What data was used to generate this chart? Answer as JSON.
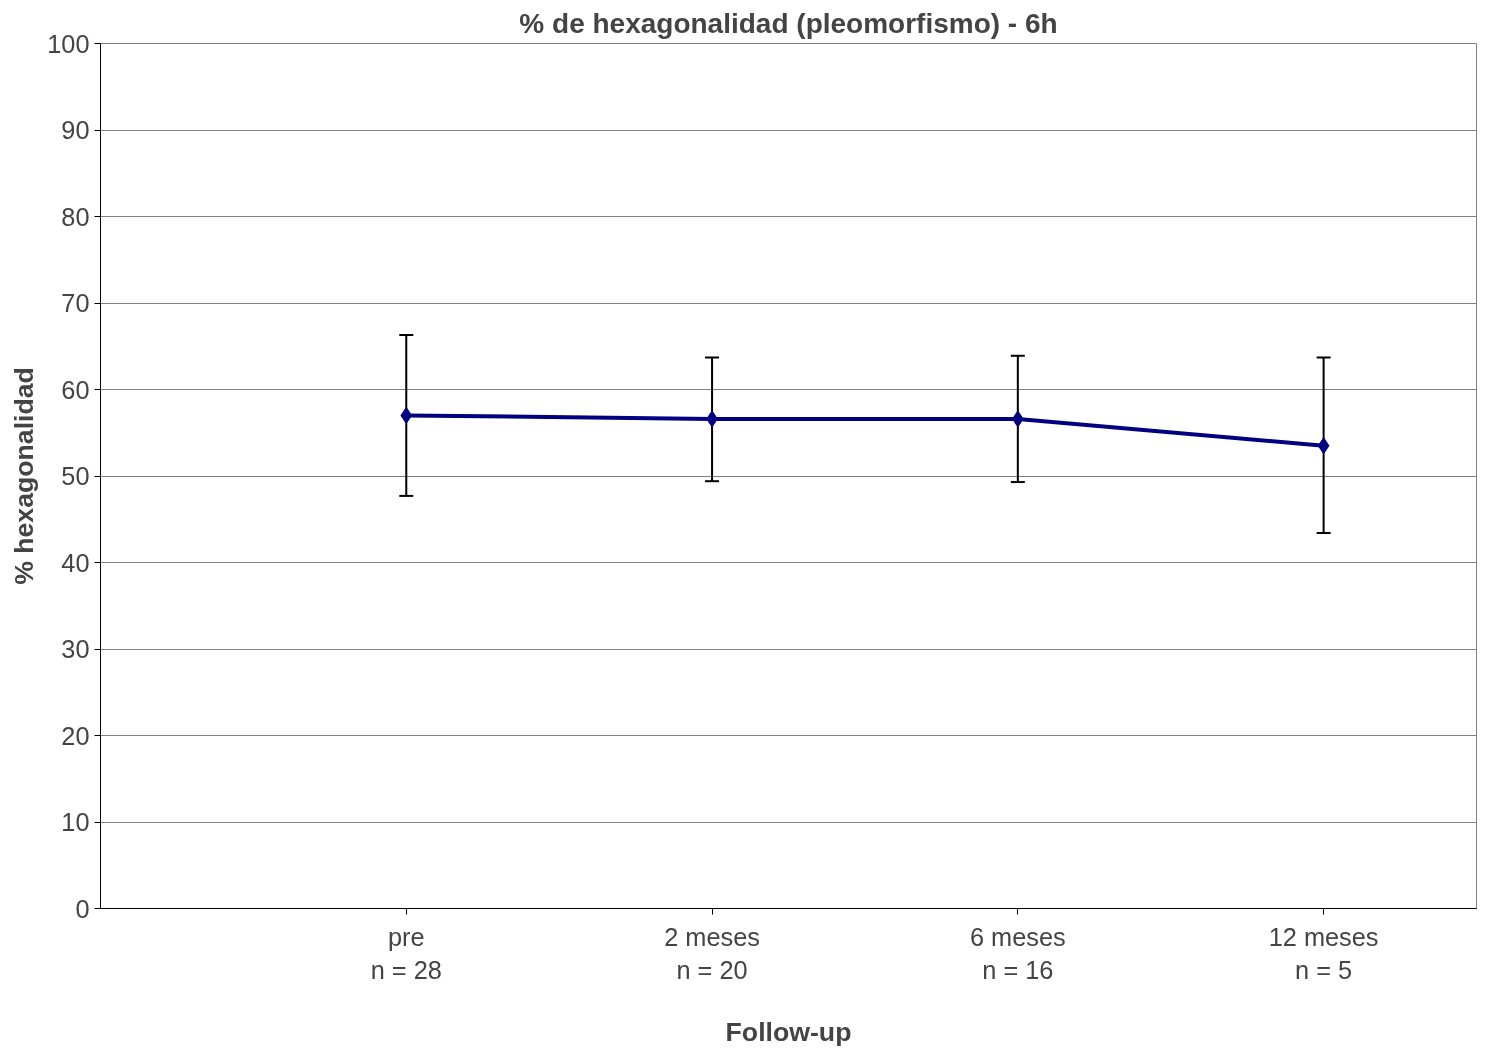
{
  "chart_data": {
    "type": "line",
    "title": "% de hexagonalidad (pleomorfismo) - 6h",
    "xlabel": "Follow-up",
    "ylabel": "% hexagonalidad",
    "categories": [
      "pre\nn = 28",
      "2 meses\nn = 20",
      "6 meses\nn = 16",
      "12 meses\nn = 5"
    ],
    "series": [
      {
        "color": "#000080",
        "values": [
          57.0,
          56.6,
          56.6,
          53.5
        ],
        "errors": [
          [
            47.7,
            66.3
          ],
          [
            49.4,
            63.7
          ],
          [
            49.3,
            63.9
          ],
          [
            43.4,
            63.7
          ]
        ]
      }
    ],
    "ylim": [
      0,
      100
    ],
    "yticks": [
      0,
      10,
      20,
      30,
      40,
      50,
      60,
      70,
      80,
      90,
      100
    ],
    "grid": "y",
    "marker": "diamond",
    "line_style": "solid"
  }
}
